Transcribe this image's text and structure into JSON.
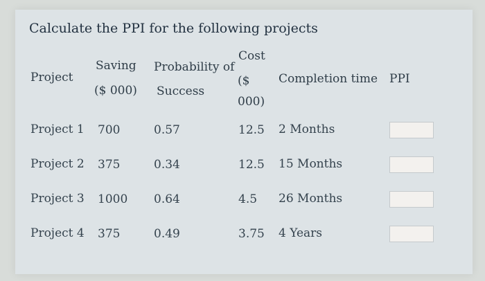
{
  "title": "Calculate the PPI for the following projects",
  "headers": {
    "project": "Project",
    "saving_line1": "Saving",
    "saving_line2": "($ 000)",
    "probability_line1": "Probability of",
    "probability_line2": "Success",
    "cost_line1": "Cost",
    "cost_line2": "($",
    "cost_line3": "000)",
    "completion": "Completion time",
    "ppi": "PPI"
  },
  "rows": [
    {
      "project": "Project 1",
      "saving": "700",
      "probability": "0.57",
      "cost": "12.5",
      "completion": "2 Months",
      "ppi": ""
    },
    {
      "project": "Project 2",
      "saving": "375",
      "probability": "0.34",
      "cost": "12.5",
      "completion": "15 Months",
      "ppi": ""
    },
    {
      "project": "Project 3",
      "saving": "1000",
      "probability": "0.64",
      "cost": "4.5",
      "completion": "26 Months",
      "ppi": ""
    },
    {
      "project": "Project 4",
      "saving": "375",
      "probability": "0.49",
      "cost": "3.75",
      "completion": "4 Years",
      "ppi": ""
    }
  ]
}
